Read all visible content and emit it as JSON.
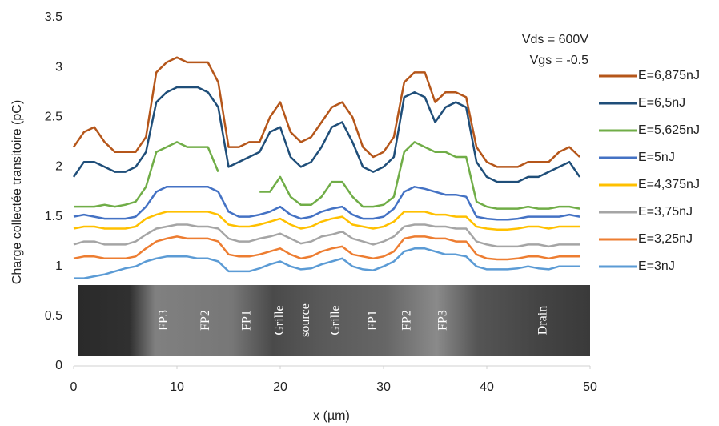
{
  "chart_data": {
    "type": "line",
    "x_label": "x (µm)",
    "y_label": "Charge collectée transitoire (pC)",
    "annotations": [
      "Vds = 600V",
      "Vgs = -0.5"
    ],
    "strip_labels": [
      "FP3",
      "FP2",
      "FP1",
      "Grille",
      "source",
      "Grille",
      "FP1",
      "FP2",
      "FP3",
      "Drain"
    ],
    "xlim": [
      0,
      50
    ],
    "xticks": [
      0,
      10,
      20,
      30,
      40,
      50
    ],
    "ylim": [
      0,
      3.5
    ],
    "yticks": [
      0,
      0.5,
      1,
      1.5,
      2,
      2.5,
      3,
      3.5
    ],
    "grid": false,
    "legend": "right",
    "x": [
      0,
      1,
      2,
      3,
      4,
      5,
      6,
      7,
      8,
      9,
      10,
      11,
      12,
      13,
      14,
      15,
      16,
      17,
      18,
      19,
      20,
      21,
      22,
      23,
      24,
      25,
      26,
      27,
      28,
      29,
      30,
      31,
      32,
      33,
      34,
      35,
      36,
      37,
      38,
      39,
      40,
      41,
      42,
      43,
      44,
      45,
      46,
      47,
      48,
      49
    ],
    "series": [
      {
        "name": "E=6,875nJ",
        "color": "#b5561a",
        "values": [
          2.2,
          2.35,
          2.4,
          2.25,
          2.15,
          2.15,
          2.15,
          2.3,
          2.95,
          3.05,
          3.1,
          3.05,
          3.05,
          3.05,
          2.85,
          2.2,
          2.2,
          2.25,
          2.25,
          2.5,
          2.65,
          2.35,
          2.25,
          2.3,
          2.45,
          2.6,
          2.65,
          2.5,
          2.2,
          2.1,
          2.15,
          2.3,
          2.85,
          2.95,
          2.95,
          2.65,
          2.75,
          2.75,
          2.7,
          2.2,
          2.05,
          2.0,
          2.0,
          2.0,
          2.05,
          2.05,
          2.05,
          2.15,
          2.2,
          2.1
        ]
      },
      {
        "name": "E=6,5nJ",
        "color": "#1f4e79",
        "values": [
          1.9,
          2.05,
          2.05,
          2.0,
          1.95,
          1.95,
          2.0,
          2.15,
          2.65,
          2.75,
          2.8,
          2.8,
          2.8,
          2.75,
          2.6,
          2.0,
          2.05,
          2.1,
          2.15,
          2.35,
          2.4,
          2.1,
          2.0,
          2.05,
          2.2,
          2.4,
          2.45,
          2.25,
          2.0,
          1.95,
          2.0,
          2.1,
          2.7,
          2.75,
          2.7,
          2.45,
          2.6,
          2.65,
          2.6,
          2.05,
          1.9,
          1.85,
          1.85,
          1.85,
          1.9,
          1.9,
          1.95,
          2.0,
          2.05,
          1.9
        ]
      },
      {
        "name": "E=5,625nJ",
        "color": "#70ad47",
        "values": [
          1.6,
          1.6,
          1.6,
          1.62,
          1.6,
          1.62,
          1.65,
          1.8,
          2.15,
          2.2,
          2.25,
          2.2,
          2.2,
          2.2,
          1.95,
          null,
          null,
          null,
          1.75,
          1.75,
          1.9,
          1.7,
          1.62,
          1.62,
          1.7,
          1.85,
          1.85,
          1.7,
          1.6,
          1.6,
          1.62,
          1.7,
          2.15,
          2.25,
          2.2,
          2.15,
          2.15,
          2.1,
          2.1,
          1.65,
          1.6,
          1.58,
          1.58,
          1.58,
          1.6,
          1.58,
          1.58,
          1.6,
          1.6,
          1.58
        ]
      },
      {
        "name": "E=5nJ",
        "color": "#4472c4",
        "values": [
          1.5,
          1.52,
          1.5,
          1.48,
          1.48,
          1.48,
          1.5,
          1.6,
          1.75,
          1.8,
          1.8,
          1.8,
          1.8,
          1.8,
          1.75,
          1.55,
          1.5,
          1.5,
          1.52,
          1.55,
          1.6,
          1.52,
          1.48,
          1.5,
          1.55,
          1.58,
          1.6,
          1.52,
          1.48,
          1.48,
          1.5,
          1.58,
          1.75,
          1.8,
          1.78,
          1.75,
          1.72,
          1.72,
          1.7,
          1.5,
          1.48,
          1.47,
          1.47,
          1.48,
          1.5,
          1.5,
          1.5,
          1.5,
          1.52,
          1.5
        ]
      },
      {
        "name": "E=4,375nJ",
        "color": "#ffc000",
        "values": [
          1.38,
          1.4,
          1.4,
          1.38,
          1.38,
          1.38,
          1.4,
          1.48,
          1.52,
          1.55,
          1.55,
          1.55,
          1.55,
          1.55,
          1.52,
          1.42,
          1.4,
          1.4,
          1.42,
          1.45,
          1.48,
          1.42,
          1.38,
          1.4,
          1.45,
          1.48,
          1.5,
          1.42,
          1.4,
          1.38,
          1.4,
          1.45,
          1.55,
          1.55,
          1.55,
          1.52,
          1.52,
          1.5,
          1.5,
          1.4,
          1.38,
          1.37,
          1.37,
          1.38,
          1.4,
          1.4,
          1.38,
          1.4,
          1.4,
          1.4
        ]
      },
      {
        "name": "E=3,75nJ",
        "color": "#a5a5a5",
        "values": [
          1.22,
          1.25,
          1.25,
          1.22,
          1.22,
          1.22,
          1.25,
          1.32,
          1.38,
          1.4,
          1.42,
          1.42,
          1.4,
          1.4,
          1.38,
          1.28,
          1.25,
          1.25,
          1.28,
          1.3,
          1.33,
          1.28,
          1.23,
          1.25,
          1.3,
          1.32,
          1.35,
          1.28,
          1.25,
          1.22,
          1.25,
          1.3,
          1.4,
          1.42,
          1.42,
          1.4,
          1.4,
          1.38,
          1.38,
          1.25,
          1.22,
          1.2,
          1.2,
          1.2,
          1.22,
          1.22,
          1.2,
          1.22,
          1.22,
          1.22
        ]
      },
      {
        "name": "E=3,25nJ",
        "color": "#ed7d31",
        "values": [
          1.08,
          1.1,
          1.1,
          1.08,
          1.08,
          1.08,
          1.1,
          1.18,
          1.25,
          1.28,
          1.3,
          1.28,
          1.28,
          1.28,
          1.25,
          1.12,
          1.1,
          1.1,
          1.12,
          1.15,
          1.18,
          1.12,
          1.08,
          1.1,
          1.15,
          1.18,
          1.2,
          1.12,
          1.1,
          1.08,
          1.1,
          1.15,
          1.28,
          1.3,
          1.3,
          1.28,
          1.28,
          1.25,
          1.25,
          1.12,
          1.08,
          1.07,
          1.07,
          1.08,
          1.1,
          1.1,
          1.08,
          1.1,
          1.1,
          1.1
        ]
      },
      {
        "name": "E=3nJ",
        "color": "#5b9bd5",
        "values": [
          0.88,
          0.88,
          0.9,
          0.92,
          0.95,
          0.98,
          1.0,
          1.05,
          1.08,
          1.1,
          1.1,
          1.1,
          1.08,
          1.08,
          1.05,
          0.95,
          0.95,
          0.95,
          0.98,
          1.02,
          1.05,
          1.0,
          0.97,
          0.98,
          1.02,
          1.05,
          1.08,
          1.0,
          0.97,
          0.96,
          1.0,
          1.05,
          1.15,
          1.18,
          1.18,
          1.15,
          1.12,
          1.12,
          1.1,
          1.0,
          0.97,
          0.97,
          0.97,
          0.98,
          1.0,
          0.98,
          0.97,
          1.0,
          1.0,
          1.0
        ]
      }
    ]
  }
}
